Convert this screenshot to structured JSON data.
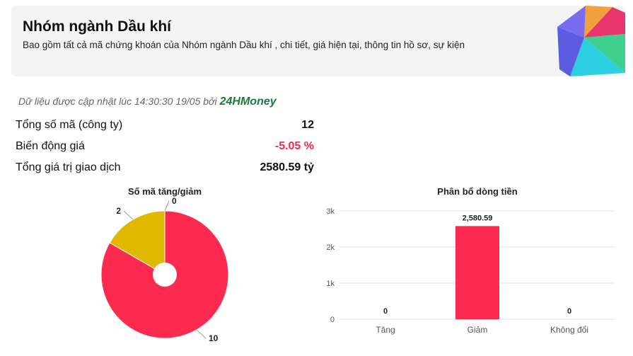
{
  "header": {
    "title": "Nhóm ngành Dầu khí",
    "subtitle": "Bao gồm tất cả mã chứng khoán của Nhóm ngành Dầu khí , chi tiết, giá hiện tại, thông tin hồ sơ, sự kiện"
  },
  "update_note": {
    "text": "Dữ liệu được cập nhật lúc 14:30:30 19/05 bởi",
    "brand": "24HMoney"
  },
  "stats": [
    {
      "label": "Tổng số mã (công ty)",
      "value": "12"
    },
    {
      "label": "Biến động giá",
      "value": "-5.05 %"
    },
    {
      "label": "Tổng giá trị giao dịch",
      "value": "2580.59 tỷ"
    }
  ],
  "chart_data": [
    {
      "type": "pie",
      "title": "Số mã tăng/giảm",
      "values": [
        0,
        10,
        2
      ],
      "colors": [
        "#1fa35a",
        "#fd2a50",
        "#e0b800"
      ]
    },
    {
      "type": "bar",
      "title": "Phân bổ dòng tiền",
      "categories": [
        "Tăng",
        "Giảm",
        "Không đổi"
      ],
      "values": [
        0,
        2580.59,
        0
      ],
      "value_labels": [
        "0",
        "2,580.59",
        "0"
      ],
      "color": "#fd2a50",
      "ylim": [
        0,
        3000
      ],
      "yticks": [
        0,
        {
          "value": 1000,
          "label": "1k"
        },
        {
          "value": 2000,
          "label": "2k"
        },
        {
          "value": 3000,
          "label": "3k"
        }
      ],
      "grid": true
    }
  ]
}
